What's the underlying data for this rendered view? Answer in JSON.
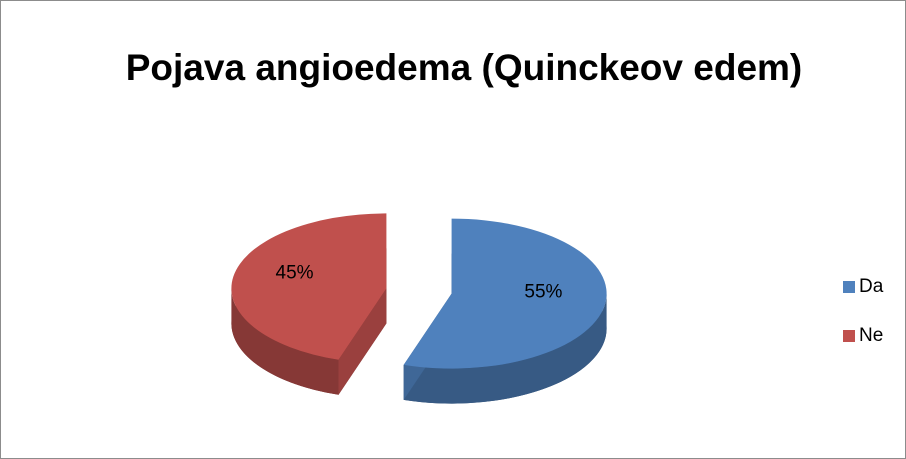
{
  "chart_data": {
    "type": "pie",
    "title": "Pojava angioedema (Quinckeov edem)",
    "categories": [
      "Da",
      "Ne"
    ],
    "values": [
      55,
      45
    ],
    "value_labels": [
      "55%",
      "45%"
    ],
    "colors": [
      "#4f81bd",
      "#c0504d"
    ],
    "legend": "right"
  }
}
